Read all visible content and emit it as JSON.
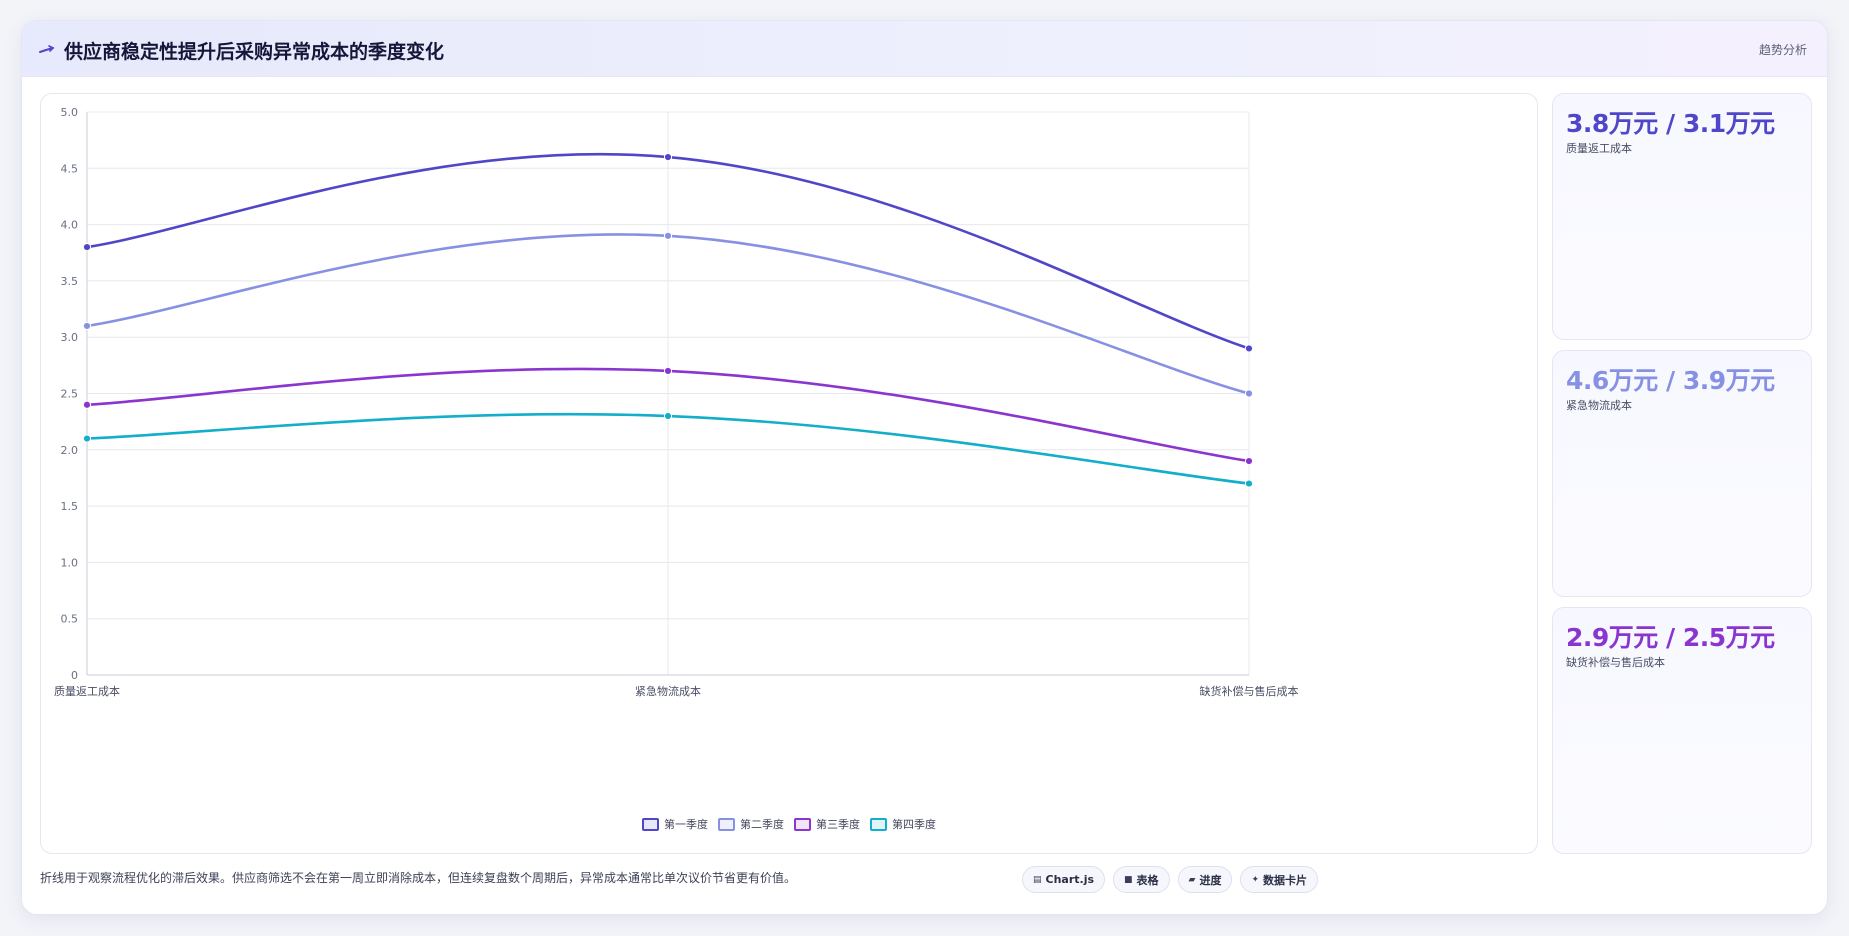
{
  "header": {
    "title": "供应商稳定性提升后采购异常成本的季度变化",
    "tag": "趋势分析",
    "icon": "trend-line-icon"
  },
  "colors": {
    "q1": "#4f46c8",
    "q2": "#8691e4",
    "q3": "#8b35d0",
    "q4": "#13aec9"
  },
  "chart_data": {
    "type": "line",
    "categories": [
      "质量返工成本",
      "紧急物流成本",
      "缺货补偿与售后成本"
    ],
    "series": [
      {
        "name": "第一季度",
        "values": [
          3.8,
          4.6,
          2.9
        ],
        "color": "#4f46c8"
      },
      {
        "name": "第二季度",
        "values": [
          3.1,
          3.9,
          2.5
        ],
        "color": "#8691e4"
      },
      {
        "name": "第三季度",
        "values": [
          2.4,
          2.7,
          1.9
        ],
        "color": "#8b35d0"
      },
      {
        "name": "第四季度",
        "values": [
          2.1,
          2.3,
          1.7
        ],
        "color": "#13aec9"
      }
    ],
    "ylim": [
      0,
      5.0
    ],
    "yticks": [
      "0",
      "0.5",
      "1.0",
      "1.5",
      "2.0",
      "2.5",
      "3.0",
      "3.5",
      "4.0",
      "4.5",
      "5.0"
    ],
    "grid": true,
    "legend_position": "bottom-center",
    "curve": "smooth"
  },
  "stats": [
    {
      "value": "3.8万元 / 3.1万元",
      "label": "质量返工成本",
      "color": "#4f46c8"
    },
    {
      "value": "4.6万元 / 3.9万元",
      "label": "紧急物流成本",
      "color": "#8691e4"
    },
    {
      "value": "2.9万元 / 2.5万元",
      "label": "缺货补偿与售后成本",
      "color": "#8b35d0"
    }
  ],
  "footer": {
    "note": "折线用于观察流程优化的滞后效果。供应商筛选不会在第一周立即消除成本，但连续复盘数个周期后，异常成本通常比单次议价节省更有价值。",
    "chips": [
      {
        "icon": "chart-icon",
        "label": "Chart.js"
      },
      {
        "icon": "table-icon",
        "label": "表格"
      },
      {
        "icon": "progress-icon",
        "label": "进度"
      },
      {
        "icon": "data-card-icon",
        "label": "数据卡片"
      }
    ]
  }
}
